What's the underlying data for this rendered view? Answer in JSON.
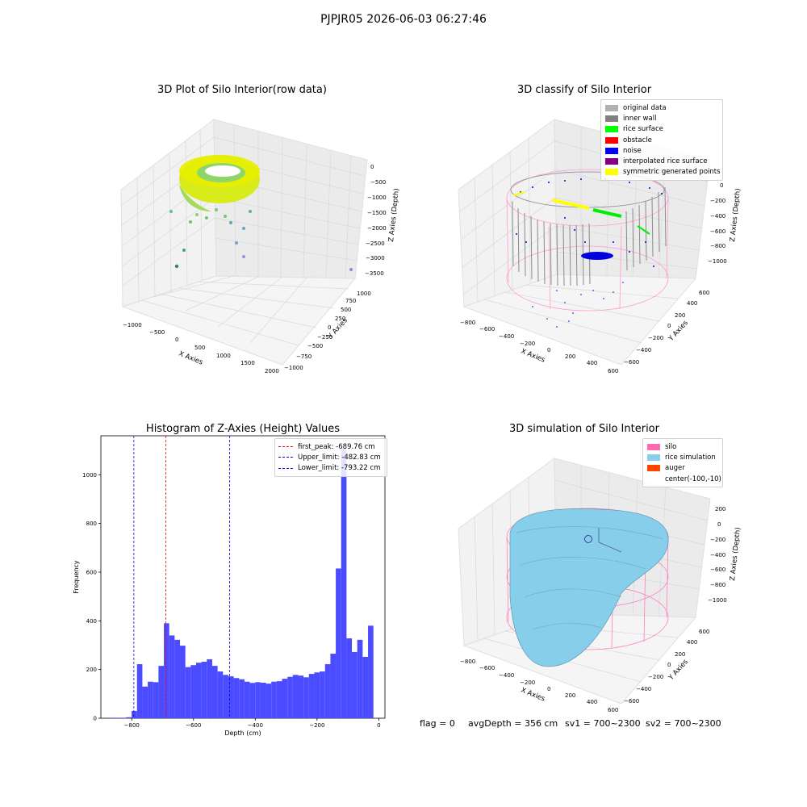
{
  "figure_title": "PJPJR05 2026-06-03 06:27:46",
  "footer": {
    "flag": "flag = 0",
    "avg_depth": "avgDepth = 356 cm",
    "sv1": "sv1 = 700~2300",
    "sv2": "sv2 = 700~2300"
  },
  "chart_data": [
    {
      "type": "scatter",
      "title": "3D Plot of Silo Interior(row data)",
      "xlabel": "X Axies",
      "ylabel": "Y Axies",
      "zlabel": "Z Axies (Depth)",
      "x_ticks": [
        "−1000",
        "−500",
        "0",
        "500",
        "1000",
        "1500",
        "2000"
      ],
      "y_ticks": [
        "−1000",
        "−750",
        "−500",
        "−250",
        "0",
        "250",
        "500",
        "750",
        "1000"
      ],
      "z_ticks": [
        "0",
        "−500",
        "−1000",
        "−1500",
        "−2000",
        "−2500",
        "−3000",
        "−3500"
      ],
      "xlim": [
        -1000,
        2000
      ],
      "ylim": [
        -1000,
        1000
      ],
      "zlim": [
        -3500,
        0
      ]
    },
    {
      "type": "scatter",
      "title": "3D classify of Silo Interior",
      "xlabel": "X Axies",
      "ylabel": "Y Axies",
      "zlabel": "Z Axies (Depth)",
      "x_ticks": [
        "−800",
        "−600",
        "−400",
        "−200",
        "0",
        "200",
        "400",
        "600"
      ],
      "y_ticks": [
        "−600",
        "−400",
        "−200",
        "0",
        "200",
        "400",
        "600"
      ],
      "z_ticks": [
        "0",
        "−200",
        "−400",
        "−600",
        "−800",
        "−1000"
      ],
      "legend": [
        {
          "label": "original data",
          "color": "#b0b0b0"
        },
        {
          "label": "inner wall",
          "color": "#808080"
        },
        {
          "label": "rice surface",
          "color": "#00ff00"
        },
        {
          "label": "obstacle",
          "color": "#ff0000"
        },
        {
          "label": "noise",
          "color": "#0000ff"
        },
        {
          "label": "interpolated rice surface",
          "color": "#800080"
        },
        {
          "label": "symmetric generated points",
          "color": "#ffff00"
        }
      ]
    },
    {
      "type": "bar",
      "title": "Histogram of Z-Axies (Height) Values",
      "xlabel": "Depth (cm)",
      "ylabel": "Frequency",
      "bar_color": "#4b4bff",
      "xlim": [
        -900,
        20
      ],
      "ylim": [
        0,
        1160
      ],
      "x_ticks": [
        -800,
        -600,
        -400,
        -200,
        0
      ],
      "x_tick_labels": [
        "−800",
        "−600",
        "−400",
        "−200",
        "0"
      ],
      "y_ticks": [
        0,
        200,
        400,
        600,
        800,
        1000
      ],
      "y_tick_labels": [
        "0",
        "200",
        "400",
        "600",
        "800",
        "1000"
      ],
      "bins_start": -870,
      "bin_width": 17.4,
      "values": [
        2,
        2,
        2,
        4,
        30,
        222,
        130,
        150,
        148,
        215,
        390,
        340,
        322,
        298,
        210,
        218,
        228,
        232,
        242,
        215,
        192,
        178,
        172,
        165,
        160,
        150,
        145,
        148,
        146,
        142,
        150,
        152,
        162,
        170,
        178,
        175,
        168,
        182,
        188,
        192,
        222,
        265,
        615,
        1105,
        328,
        272,
        322,
        252,
        380
      ],
      "vlines": [
        {
          "label": "first_peak: -689.76 cm",
          "x": -689.76,
          "color": "#ff0000"
        },
        {
          "label": "Upper_limit: -482.83 cm",
          "x": -482.83,
          "color": "#0000ff"
        },
        {
          "label": "Lower_limit: -793.22 cm",
          "x": -793.22,
          "color": "#0000ff"
        }
      ]
    },
    {
      "type": "surface",
      "title": "3D simulation of Silo Interior",
      "xlabel": "X Axies",
      "ylabel": "Y Axies",
      "zlabel": "Z Axies (Depth)",
      "x_ticks": [
        "−800",
        "−600",
        "−400",
        "−200",
        "0",
        "200",
        "400",
        "600"
      ],
      "y_ticks": [
        "−600",
        "−400",
        "−200",
        "0",
        "200",
        "400",
        "600"
      ],
      "z_ticks": [
        "200",
        "0",
        "−200",
        "−400",
        "−600",
        "−800",
        "−1000"
      ],
      "legend": [
        {
          "label": "silo",
          "color": "#ff69b4"
        },
        {
          "label": "rice simulation",
          "color": "#87ceeb"
        },
        {
          "label": "auger",
          "color": "#ff4500"
        },
        {
          "label": "center(-100,-10)",
          "color": ""
        }
      ]
    }
  ]
}
